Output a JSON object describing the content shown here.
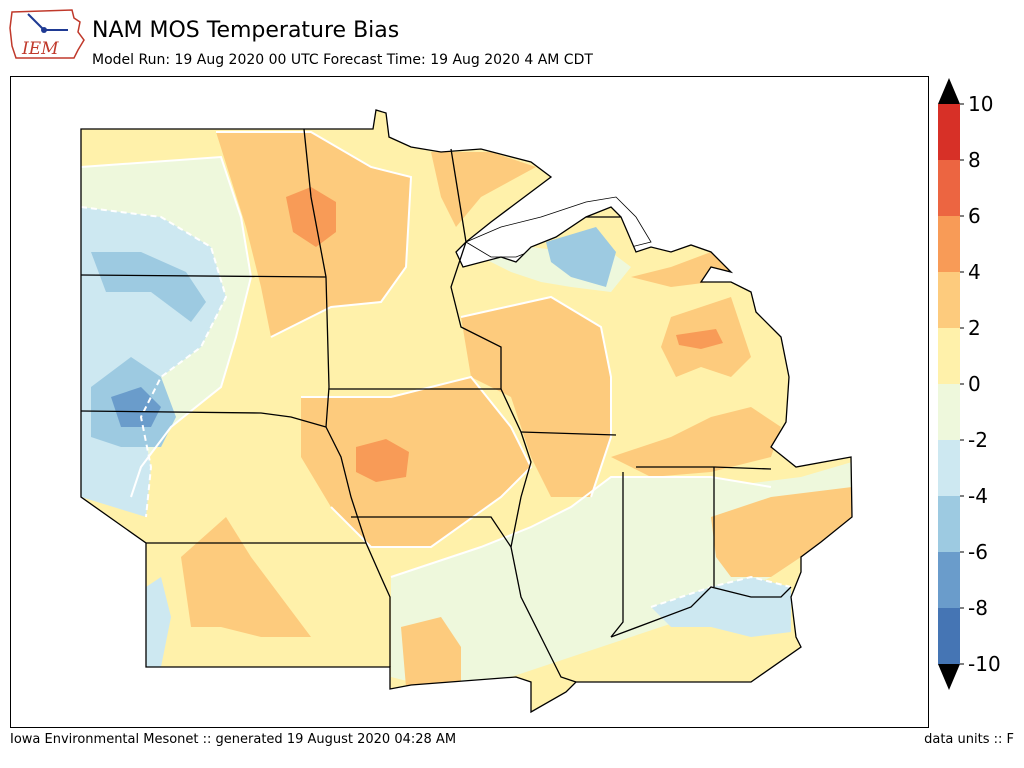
{
  "header": {
    "logo_text": "IEM",
    "title": "NAM MOS Temperature Bias",
    "subtitle": "Model Run: 19 Aug 2020 00 UTC Forecast Time: 19 Aug 2020 4 AM CDT"
  },
  "colorbar": {
    "levels": [
      -10,
      -8,
      -6,
      -4,
      -2,
      0,
      2,
      4,
      6,
      8,
      10
    ],
    "tick_labels": [
      "10",
      "8",
      "6",
      "4",
      "2",
      "0",
      "-2",
      "-4",
      "-6",
      "-8",
      "-10"
    ],
    "colors": [
      "#4575b4",
      "#6a9ccb",
      "#9dcae1",
      "#cde8f1",
      "#eef8dc",
      "#fff1aa",
      "#fdcb7d",
      "#f89b57",
      "#ec6541",
      "#d73027"
    ],
    "over_color": "#000000",
    "under_color": "#000000"
  },
  "map": {
    "variable": "temperature bias",
    "region": "Upper Midwest"
  },
  "footer": {
    "left": "Iowa Environmental Mesonet :: generated 19 August 2020 04:28 AM",
    "right": "data units :: F"
  }
}
